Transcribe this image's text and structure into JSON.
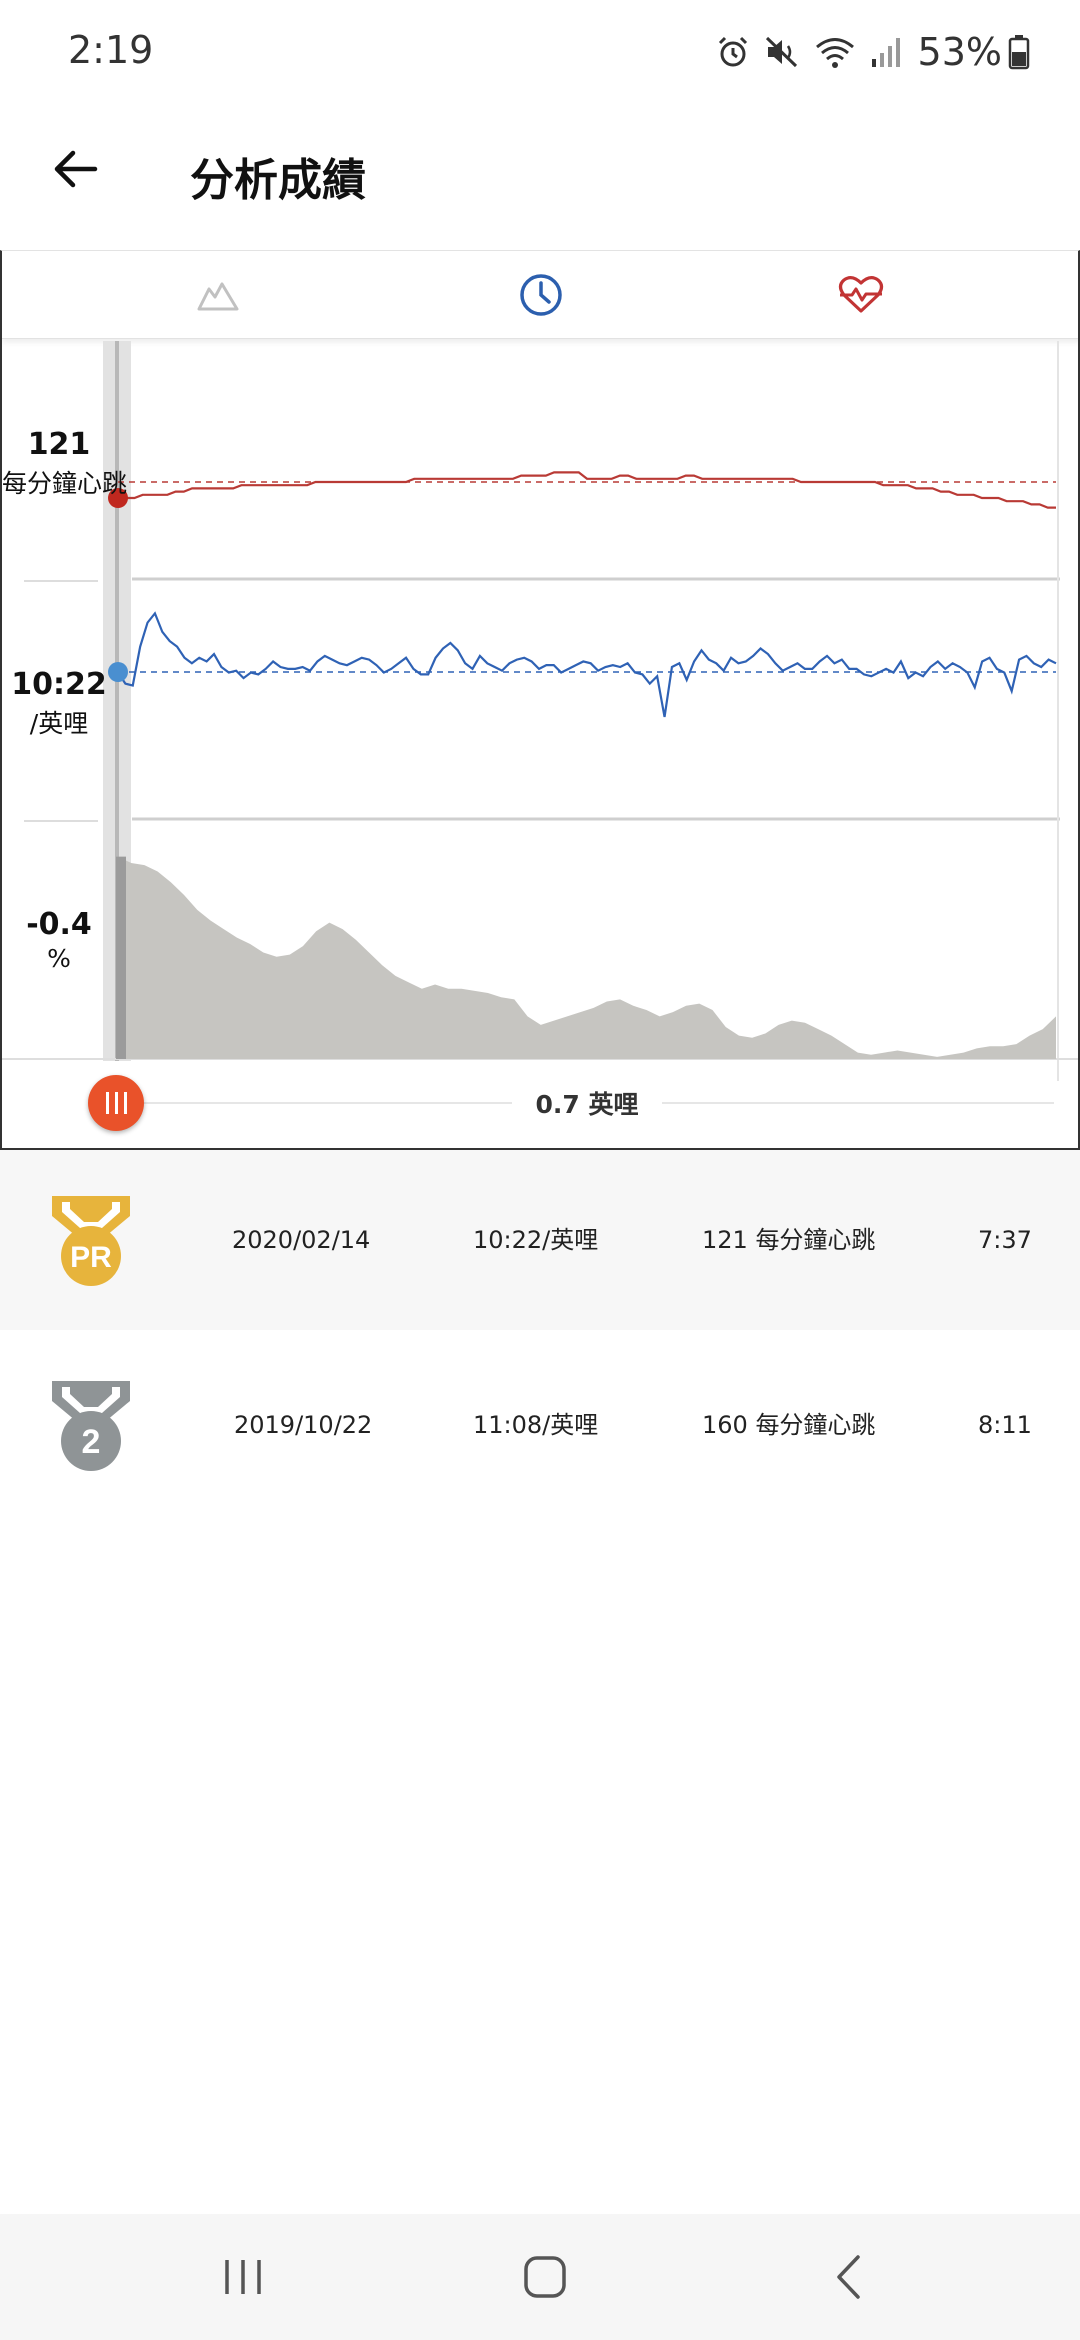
{
  "status_bar": {
    "time": "2:19",
    "battery": "53%",
    "icons": [
      "alarm-icon",
      "mute-icon",
      "wifi-icon",
      "signal-icon",
      "battery-icon"
    ]
  },
  "app_bar": {
    "title": "分析成績",
    "back_icon": "arrow-left-icon"
  },
  "tabs": [
    {
      "name": "elevation-tab",
      "icon": "mountain-icon",
      "color": "#bdbdbd"
    },
    {
      "name": "pace-tab",
      "icon": "clock-icon",
      "color": "#2c5fae"
    },
    {
      "name": "heart-rate-tab",
      "icon": "heart-pulse-icon",
      "color": "#c23434"
    }
  ],
  "chart_data": [
    {
      "type": "line",
      "series": [
        {
          "values": [
            116,
            116,
            116,
            117,
            117,
            117,
            117,
            118,
            118,
            119,
            119,
            119,
            119,
            119,
            119,
            120,
            120,
            120,
            120,
            120,
            120,
            120,
            120,
            120,
            121,
            121,
            121,
            121,
            121,
            121,
            121,
            121,
            121,
            121,
            121,
            121,
            122,
            122,
            122,
            122,
            122,
            122,
            122,
            122,
            122,
            122,
            122,
            122,
            122,
            123,
            123,
            123,
            123,
            124,
            124,
            124,
            124,
            122,
            122,
            122,
            122,
            123,
            123,
            122,
            122,
            122,
            122,
            122,
            122,
            123,
            123,
            122,
            122,
            122,
            122,
            122,
            122,
            122,
            122,
            122,
            122,
            122,
            122,
            121,
            121,
            121,
            121,
            121,
            121,
            121,
            121,
            121,
            121,
            120,
            120,
            120,
            120,
            119,
            119,
            119,
            118,
            118,
            117,
            117,
            117,
            116,
            116,
            116,
            115,
            115,
            115,
            114,
            114,
            113,
            113
          ]
        }
      ],
      "reference_value": 121,
      "reference_label": "121",
      "unit": "每分鐘心跳",
      "color": "#b93a35"
    },
    {
      "type": "line",
      "series": [
        {
          "values": [
            10.4,
            11.0,
            11.1,
            9.0,
            7.7,
            7.2,
            8.2,
            8.7,
            9.0,
            9.6,
            9.9,
            9.6,
            9.8,
            9.4,
            10.1,
            10.4,
            10.3,
            10.7,
            10.4,
            10.5,
            10.2,
            9.8,
            10.1,
            10.2,
            10.2,
            10.1,
            10.3,
            9.8,
            9.5,
            9.7,
            9.9,
            10.0,
            9.8,
            9.6,
            9.7,
            10.0,
            10.4,
            10.2,
            9.9,
            9.6,
            10.2,
            10.5,
            10.5,
            9.6,
            9.1,
            8.8,
            9.2,
            9.9,
            10.2,
            9.5,
            9.9,
            10.1,
            10.3,
            9.9,
            9.7,
            9.6,
            9.8,
            10.2,
            10.0,
            10.0,
            10.4,
            10.2,
            10.0,
            9.8,
            9.9,
            10.3,
            10.1,
            10.0,
            10.1,
            9.9,
            10.4,
            10.5,
            11.0,
            10.6,
            12.8,
            10.1,
            9.9,
            10.8,
            9.8,
            9.2,
            9.7,
            9.9,
            10.3,
            9.6,
            9.9,
            9.8,
            9.5,
            9.1,
            9.4,
            9.9,
            10.3,
            10.1,
            9.9,
            10.2,
            10.2,
            9.8,
            9.5,
            9.9,
            9.7,
            10.2,
            10.2,
            10.5,
            10.6,
            10.4,
            10.2,
            10.4,
            9.8,
            10.7,
            10.4,
            10.6,
            10.1,
            9.8,
            10.2,
            9.9,
            10.1,
            10.4,
            11.2,
            9.8,
            9.6,
            10.2,
            10.4,
            11.4,
            9.7,
            9.5,
            9.9,
            10.1,
            9.7,
            9.9
          ]
        }
      ],
      "reference_value": 10.37,
      "reference_label": "10:22",
      "unit": "/英哩",
      "color": "#2f62b5"
    },
    {
      "type": "area",
      "series": [
        {
          "values": [
            9.5,
            9.2,
            9.1,
            8.8,
            8.3,
            7.7,
            7.0,
            6.5,
            6.1,
            5.7,
            5.4,
            5.0,
            4.8,
            4.9,
            5.3,
            6.0,
            6.4,
            6.1,
            5.6,
            5.0,
            4.4,
            3.9,
            3.6,
            3.3,
            3.5,
            3.3,
            3.3,
            3.2,
            3.1,
            2.9,
            2.8,
            2.0,
            1.6,
            1.8,
            2.0,
            2.2,
            2.4,
            2.7,
            2.8,
            2.5,
            2.3,
            2.0,
            2.2,
            2.5,
            2.6,
            2.3,
            1.5,
            1.1,
            1.0,
            1.2,
            1.6,
            1.8,
            1.7,
            1.4,
            1.1,
            0.7,
            0.3,
            0.2,
            0.3,
            0.4,
            0.3,
            0.2,
            0.1,
            0.2,
            0.3,
            0.5,
            0.6,
            0.6,
            0.7,
            1.1,
            1.4,
            2.0
          ]
        }
      ],
      "reference_label": "-0.4",
      "unit": "%",
      "color": "#c6c5c1"
    }
  ],
  "scrubber": {
    "distance": "0.7 英哩"
  },
  "results": [
    {
      "medal": "pr-medal-icon",
      "medal_text": "PR",
      "date": "2020/02/14",
      "pace": "10:22/英哩",
      "heart_rate": "121 每分鐘心跳",
      "time": "7:37"
    },
    {
      "medal": "second-place-medal-icon",
      "medal_text": "2",
      "date": "2019/10/22",
      "pace": "11:08/英哩",
      "heart_rate": "160 每分鐘心跳",
      "time": "8:11"
    }
  ],
  "nav_bar": {
    "icons": [
      "recent-apps-icon",
      "home-icon",
      "back-icon"
    ]
  }
}
